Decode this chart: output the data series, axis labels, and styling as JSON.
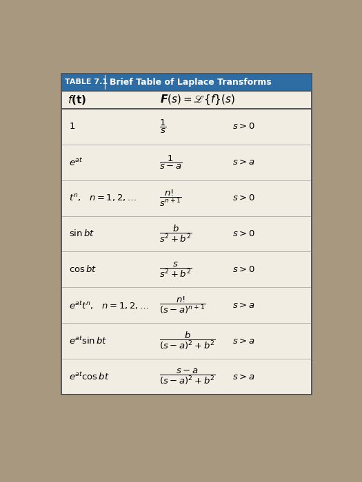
{
  "title_label": "TABLE 7.1",
  "title_text": "Brief Table of Laplace Transforms",
  "outer_bg": "#a89880",
  "table_bg": "#f2ede2",
  "header_bg": "#2e6da4",
  "header_text_color": "#ffffff",
  "subheader_line_color": "#444444",
  "row_line_color": "#aaaaaa",
  "rows": [
    {
      "left_parts": [
        "$1$"
      ],
      "right_frac": "$\\dfrac{1}{s}$",
      "right_cond": "$s > 0$"
    },
    {
      "left_parts": [
        "$e^{at}$"
      ],
      "right_frac": "$\\dfrac{1}{s-a}$",
      "right_cond": "$s > a$"
    },
    {
      "left_parts": [
        "$t^{n}$,   $n = 1, 2, \\ldots$"
      ],
      "right_frac": "$\\dfrac{n!}{s^{n+1}}$",
      "right_cond": "$s > 0$"
    },
    {
      "left_parts": [
        "$\\sin bt$"
      ],
      "right_frac": "$\\dfrac{b}{s^{2}+b^{2}}$",
      "right_cond": "$s > 0$"
    },
    {
      "left_parts": [
        "$\\cos bt$"
      ],
      "right_frac": "$\\dfrac{s}{s^{2}+b^{2}}$",
      "right_cond": "$s > 0$"
    },
    {
      "left_parts": [
        "$e^{at}t^{n}$,   $n = 1, 2, \\ldots$"
      ],
      "right_frac": "$\\dfrac{n!}{(s-a)^{n+1}}$",
      "right_cond": "$s > a$"
    },
    {
      "left_parts": [
        "$e^{at}\\sin bt$"
      ],
      "right_frac": "$\\dfrac{b}{(s-a)^{2}+b^{2}}$",
      "right_cond": "$s > a$"
    },
    {
      "left_parts": [
        "$e^{at}\\cos bt$"
      ],
      "right_frac": "$\\dfrac{s-a}{(s-a)^{2}+b^{2}}$",
      "right_cond": "$s > a$"
    }
  ]
}
